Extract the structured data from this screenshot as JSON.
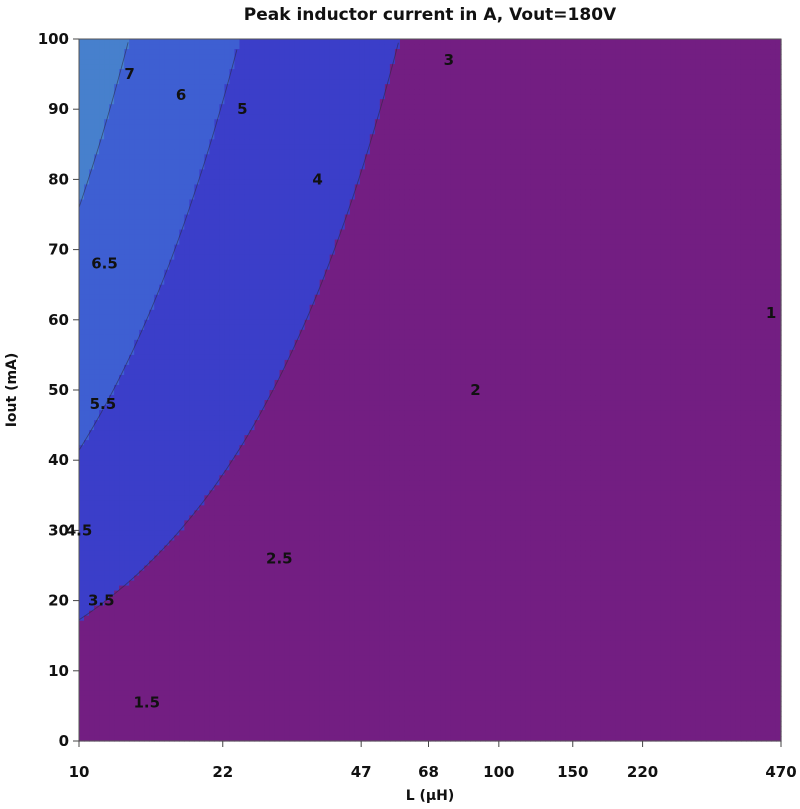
{
  "chart_data": {
    "type": "contour",
    "title": "Peak inductor current in A, Vout=180V",
    "xlabel": "L (µH)",
    "ylabel": "Iout (mA)",
    "x_scale": "log",
    "xlim": [
      10,
      470
    ],
    "ylim": [
      0,
      100
    ],
    "x_ticks": [
      10,
      22,
      47,
      68,
      100,
      150,
      220,
      470
    ],
    "x_tick_labels": [
      "10",
      "22",
      "47",
      "68",
      "100",
      "150",
      "220",
      "470"
    ],
    "y_ticks": [
      0,
      10,
      20,
      30,
      40,
      50,
      60,
      70,
      80,
      90,
      100
    ],
    "y_tick_labels": [
      "0",
      "10",
      "20",
      "30",
      "40",
      "50",
      "60",
      "70",
      "80",
      "90",
      "100"
    ],
    "contour_levels": [
      1,
      1.5,
      2,
      2.5,
      3,
      3.5,
      4,
      4.5,
      5,
      5.5,
      6,
      6.5,
      7
    ],
    "contour_labels": [
      {
        "text": "7",
        "x": 13.2,
        "y": 95
      },
      {
        "text": "6",
        "x": 17.5,
        "y": 92
      },
      {
        "text": "5",
        "x": 24.5,
        "y": 90
      },
      {
        "text": "3",
        "x": 76,
        "y": 97
      },
      {
        "text": "4",
        "x": 37,
        "y": 80
      },
      {
        "text": "6.5",
        "x": 11.5,
        "y": 68
      },
      {
        "text": "1",
        "x": 445,
        "y": 61
      },
      {
        "text": "5.5",
        "x": 11.4,
        "y": 48
      },
      {
        "text": "2",
        "x": 88,
        "y": 50
      },
      {
        "text": "4.5",
        "x": 10,
        "y": 30
      },
      {
        "text": "2.5",
        "x": 30,
        "y": 26
      },
      {
        "text": "3.5",
        "x": 11.3,
        "y": 20
      },
      {
        "text": "1.5",
        "x": 14.5,
        "y": 5.5
      }
    ],
    "colors": {
      "low": "#731e82",
      "high": "#e0251f"
    }
  }
}
